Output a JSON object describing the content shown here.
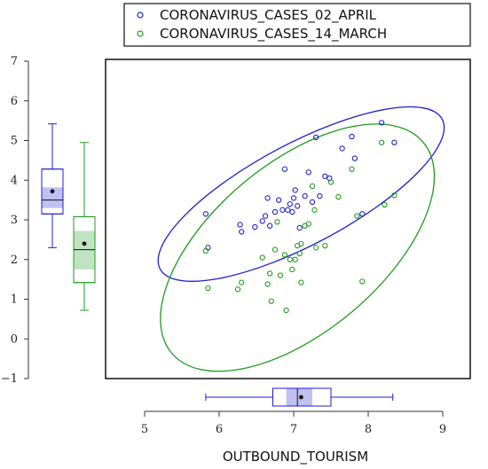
{
  "chart_data": {
    "type": "scatter",
    "xlabel": "OUTBOUND_TOURISM",
    "ylabel": "",
    "xlim": [
      5,
      9
    ],
    "ylim": [
      -1,
      7
    ],
    "x_ticks": [
      "5",
      "6",
      "7",
      "8",
      "9"
    ],
    "y_ticks": [
      "−1",
      "0",
      "1",
      "2",
      "3",
      "4",
      "5",
      "6",
      "7"
    ],
    "legend_position": "top",
    "series": [
      {
        "name": "CORONAVIRUS_CASES_02_APRIL",
        "color": "#1f1fcc",
        "points": [
          [
            5.82,
            3.15
          ],
          [
            5.85,
            2.3
          ],
          [
            6.28,
            2.88
          ],
          [
            6.3,
            2.7
          ],
          [
            6.48,
            2.82
          ],
          [
            6.58,
            2.97
          ],
          [
            6.62,
            3.1
          ],
          [
            6.65,
            3.55
          ],
          [
            6.68,
            2.85
          ],
          [
            6.75,
            3.2
          ],
          [
            6.8,
            3.5
          ],
          [
            6.85,
            3.25
          ],
          [
            6.88,
            4.28
          ],
          [
            6.92,
            3.25
          ],
          [
            6.95,
            3.4
          ],
          [
            6.98,
            3.2
          ],
          [
            7.0,
            3.55
          ],
          [
            7.02,
            3.75
          ],
          [
            7.05,
            3.35
          ],
          [
            7.08,
            2.8
          ],
          [
            7.15,
            3.6
          ],
          [
            7.2,
            4.2
          ],
          [
            7.25,
            3.45
          ],
          [
            7.3,
            5.08
          ],
          [
            7.35,
            3.6
          ],
          [
            7.42,
            4.1
          ],
          [
            7.48,
            4.05
          ],
          [
            7.65,
            4.8
          ],
          [
            7.78,
            5.1
          ],
          [
            7.82,
            4.55
          ],
          [
            7.92,
            3.15
          ],
          [
            8.18,
            5.45
          ],
          [
            8.35,
            4.95
          ]
        ]
      },
      {
        "name": "CORONAVIRUS_CASES_14_MARCH",
        "color": "#1e9b1e",
        "points": [
          [
            5.82,
            2.22
          ],
          [
            5.85,
            1.28
          ],
          [
            6.25,
            1.25
          ],
          [
            6.3,
            1.42
          ],
          [
            6.58,
            2.05
          ],
          [
            6.65,
            1.38
          ],
          [
            6.68,
            1.65
          ],
          [
            6.7,
            0.95
          ],
          [
            6.75,
            2.25
          ],
          [
            6.78,
            2.95
          ],
          [
            6.82,
            1.6
          ],
          [
            6.88,
            2.12
          ],
          [
            6.9,
            0.72
          ],
          [
            6.95,
            2.0
          ],
          [
            6.98,
            1.75
          ],
          [
            7.02,
            2.0
          ],
          [
            7.05,
            2.35
          ],
          [
            7.08,
            2.15
          ],
          [
            7.1,
            2.4
          ],
          [
            7.1,
            1.42
          ],
          [
            7.15,
            2.85
          ],
          [
            7.2,
            2.9
          ],
          [
            7.25,
            3.85
          ],
          [
            7.28,
            3.25
          ],
          [
            7.3,
            2.3
          ],
          [
            7.42,
            2.35
          ],
          [
            7.5,
            3.95
          ],
          [
            7.6,
            3.58
          ],
          [
            7.78,
            4.28
          ],
          [
            7.85,
            3.1
          ],
          [
            7.92,
            1.45
          ],
          [
            8.18,
            4.95
          ],
          [
            8.22,
            3.38
          ],
          [
            8.35,
            3.62
          ]
        ]
      }
    ],
    "confidence_ellipses": [
      {
        "series": "CORONAVIRUS_CASES_02_APRIL",
        "color": "#1f1fcc",
        "cx": 7.1,
        "cy": 3.65,
        "rx": 1.45,
        "ry": 0.78,
        "angle_deg": -28
      },
      {
        "series": "CORONAVIRUS_CASES_14_MARCH",
        "color": "#1e9b1e",
        "cx": 7.05,
        "cy": 2.3,
        "rx": 1.35,
        "ry": 1.35,
        "angle_deg": -40,
        "rx2": 2.05,
        "ry2": 1.25
      }
    ],
    "marginal_boxplots": {
      "x": {
        "series": "OUTBOUND_TOURISM",
        "color": "#1f1fcc",
        "min": 5.82,
        "q1": 6.72,
        "median": 7.05,
        "q3": 7.5,
        "max": 8.33,
        "mean": 7.1,
        "ci_low": 6.9,
        "ci_high": 7.25
      },
      "y": [
        {
          "series": "CORONAVIRUS_CASES_02_APRIL",
          "color": "#1f1fcc",
          "min": 2.3,
          "q1": 3.15,
          "median": 3.5,
          "q3": 4.28,
          "max": 5.42,
          "mean": 3.72,
          "ci_low": 3.3,
          "ci_high": 3.82
        },
        {
          "series": "CORONAVIRUS_CASES_14_MARCH",
          "color": "#1e9b1e",
          "min": 0.72,
          "q1": 1.42,
          "median": 2.25,
          "q3": 3.08,
          "max": 4.95,
          "mean": 2.4,
          "ci_low": 1.75,
          "ci_high": 2.72
        }
      ]
    }
  }
}
